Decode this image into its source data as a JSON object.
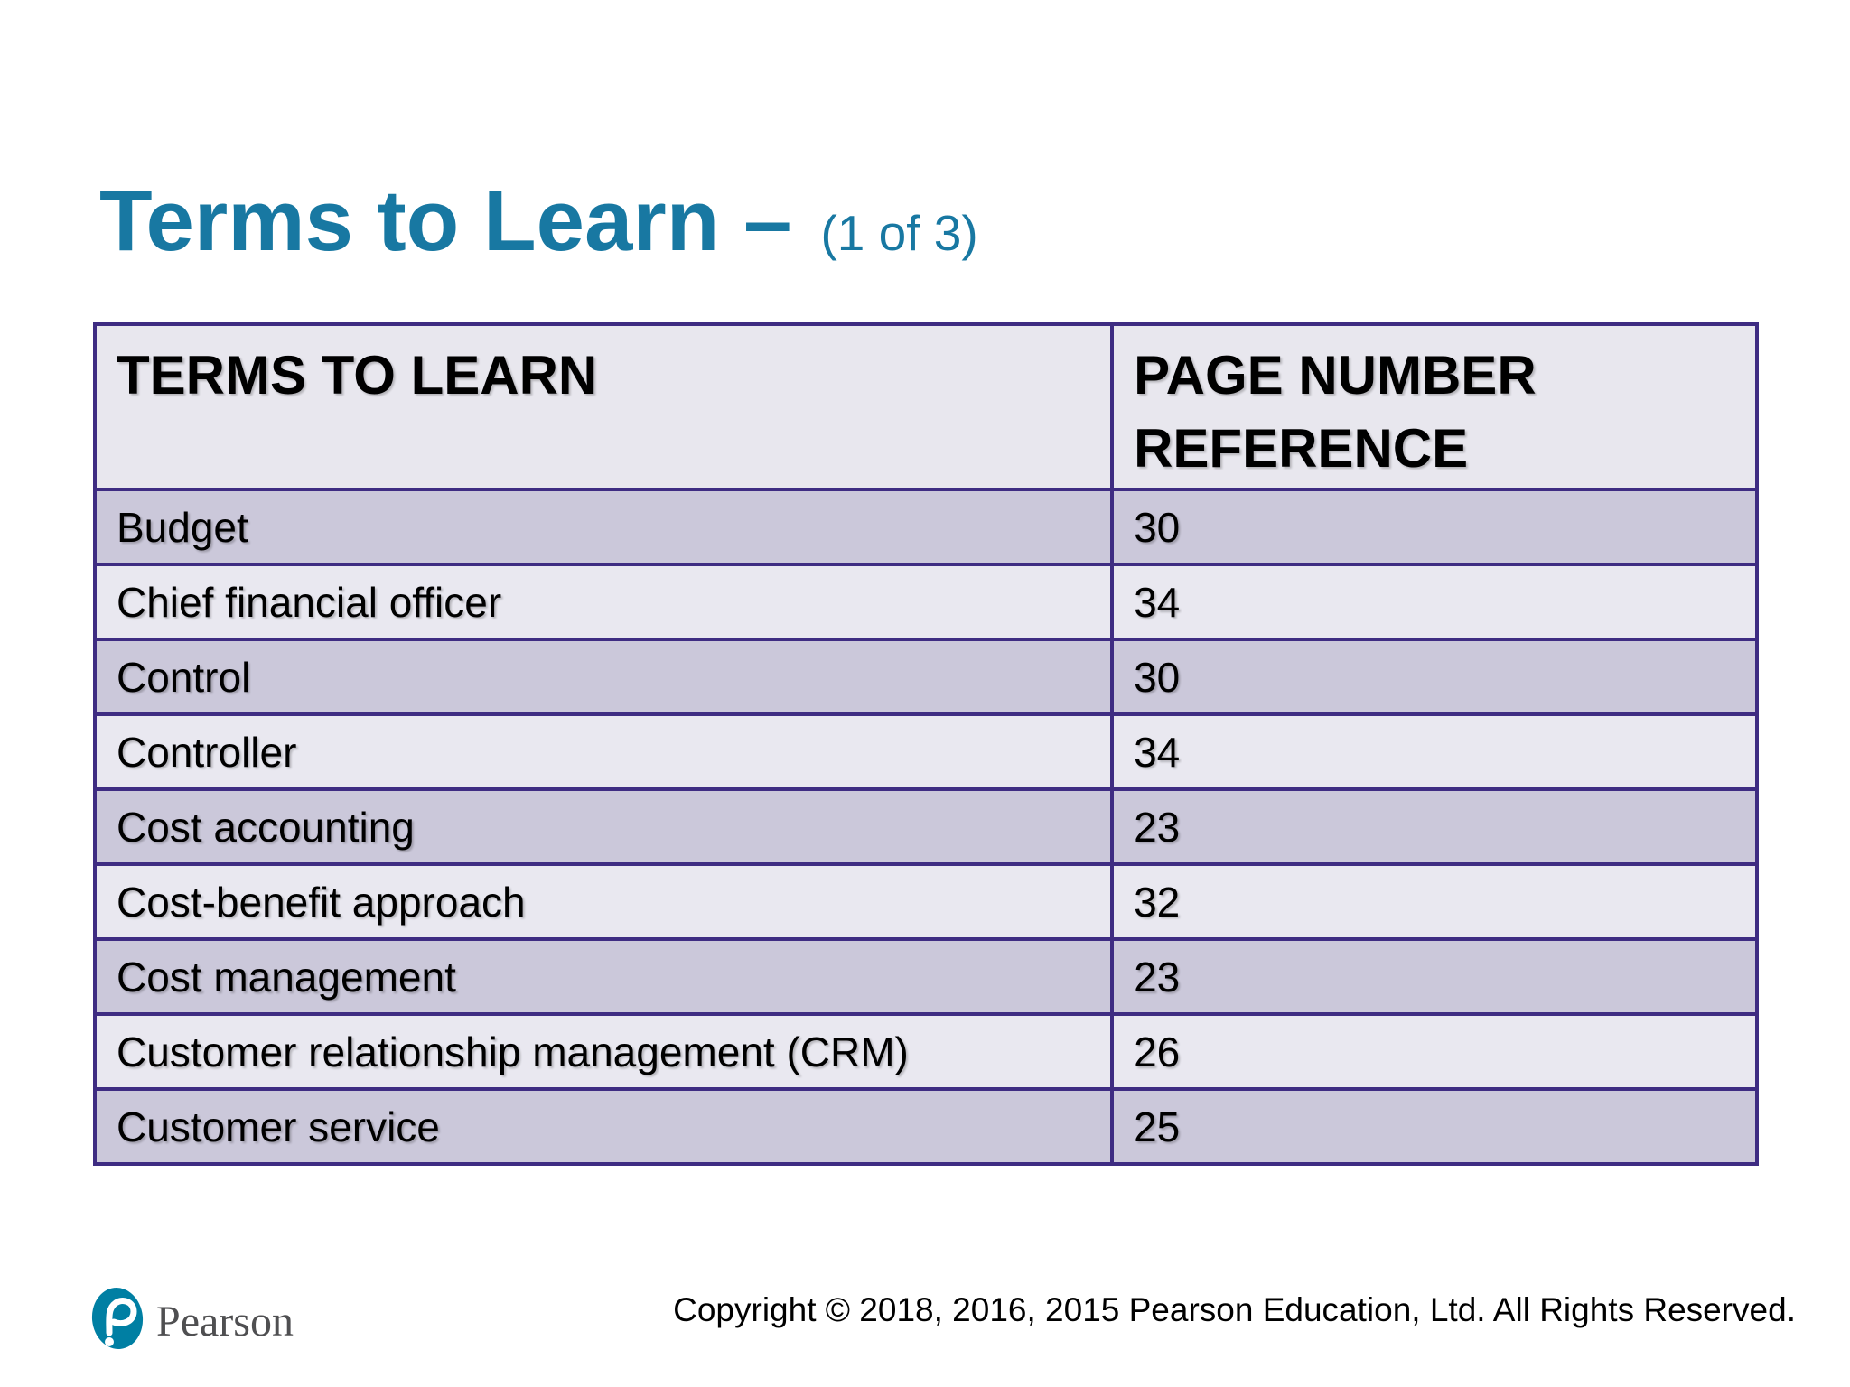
{
  "slide": {
    "title": "Terms to Learn –",
    "title_suffix": "(1 of 3)",
    "title_color": "#1878A2"
  },
  "table": {
    "columns": [
      "TERMS TO LEARN",
      "PAGE NUMBER REFERENCE"
    ],
    "rows": [
      {
        "term": "Budget",
        "page": "30"
      },
      {
        "term": "Chief financial officer",
        "page": "34"
      },
      {
        "term": "Control",
        "page": "30"
      },
      {
        "term": "Controller",
        "page": "34"
      },
      {
        "term": "Cost accounting",
        "page": "23"
      },
      {
        "term": "Cost-benefit approach",
        "page": "32"
      },
      {
        "term": "Cost management",
        "page": "23"
      },
      {
        "term": "Customer relationship management (CRM)",
        "page": "26"
      },
      {
        "term": "Customer service",
        "page": "25"
      }
    ],
    "border_color": "#3E2C82",
    "header_bg": "#E8E7EE",
    "row_bg_dark": "#CBC8DA",
    "row_bg_light": "#E9E8F0"
  },
  "footer": {
    "logo_text": "Pearson",
    "brand_color": "#007FA3",
    "copyright": "Copyright © 2018, 2016, 2015 Pearson Education, Ltd. All Rights Reserved."
  }
}
